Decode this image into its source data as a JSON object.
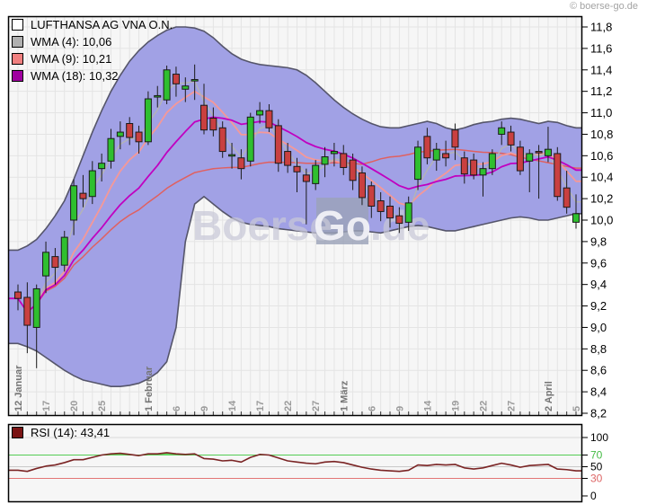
{
  "header": {
    "copyright": "© boerse-go.de"
  },
  "main_legend": {
    "title": "LUFTHANSA AG VNA O.N.",
    "title_swatch_color": "#ffffff",
    "items": [
      {
        "label": "WMA (4): 10,06",
        "color": "#b0b0b0"
      },
      {
        "label": "WMA (9): 10,21",
        "color": "#f08080"
      },
      {
        "label": "WMA (18): 10,32",
        "color": "#a000a0"
      }
    ]
  },
  "rsi_legend": {
    "label": "RSI (14): 43,41",
    "color": "#7a1414"
  },
  "watermark": {
    "pre": "Boerse",
    "boxed": "Go",
    "post": ".de"
  },
  "chart_data": {
    "type": "candlestick",
    "title": "LUFTHANSA AG VNA O.N.",
    "ylim": [
      8.2,
      11.8
    ],
    "grid": true,
    "legend_position": "top-left",
    "yticks": [
      "11,8",
      "11,6",
      "11,4",
      "11,2",
      "11,0",
      "10,8",
      "10,6",
      "10,4",
      "10,2",
      "10,0",
      "9,8",
      "9,6",
      "9,4",
      "9,2",
      "9,0",
      "8,8",
      "8,6",
      "8,4",
      "8,2"
    ],
    "xticks": [
      {
        "i": 0,
        "label": "12 Januar",
        "bold": true
      },
      {
        "i": 3,
        "label": "17",
        "bold": false
      },
      {
        "i": 6,
        "label": "20",
        "bold": false
      },
      {
        "i": 9,
        "label": "25",
        "bold": false
      },
      {
        "i": 14,
        "label": "1 Februar",
        "bold": true
      },
      {
        "i": 17,
        "label": "6",
        "bold": false
      },
      {
        "i": 20,
        "label": "9",
        "bold": false
      },
      {
        "i": 23,
        "label": "14",
        "bold": false
      },
      {
        "i": 26,
        "label": "17",
        "bold": false
      },
      {
        "i": 29,
        "label": "22",
        "bold": false
      },
      {
        "i": 32,
        "label": "27",
        "bold": false
      },
      {
        "i": 35,
        "label": "1 März",
        "bold": true
      },
      {
        "i": 38,
        "label": "6",
        "bold": false
      },
      {
        "i": 41,
        "label": "9",
        "bold": false
      },
      {
        "i": 44,
        "label": "14",
        "bold": false
      },
      {
        "i": 47,
        "label": "19",
        "bold": false
      },
      {
        "i": 50,
        "label": "22",
        "bold": false
      },
      {
        "i": 53,
        "label": "27",
        "bold": false
      },
      {
        "i": 57,
        "label": "2 April",
        "bold": true
      },
      {
        "i": 60,
        "label": "5",
        "bold": false
      }
    ],
    "candles": [
      [
        "12.01",
        9.33,
        9.4,
        9.16,
        9.27
      ],
      [
        "13.01",
        9.28,
        9.42,
        8.76,
        9.02
      ],
      [
        "16.01",
        9.0,
        9.4,
        8.62,
        9.36
      ],
      [
        "17.01",
        9.48,
        9.8,
        9.32,
        9.7
      ],
      [
        "18.01",
        9.66,
        9.74,
        9.4,
        9.56
      ],
      [
        "19.01",
        9.58,
        9.9,
        9.52,
        9.84
      ],
      [
        "20.01",
        10.0,
        10.38,
        9.86,
        10.32
      ],
      [
        "23.01",
        10.25,
        10.42,
        10.12,
        10.2
      ],
      [
        "24.01",
        10.22,
        10.55,
        10.15,
        10.46
      ],
      [
        "25.01",
        10.48,
        10.62,
        10.36,
        10.53
      ],
      [
        "26.01",
        10.55,
        10.85,
        10.48,
        10.76
      ],
      [
        "27.01",
        10.78,
        10.92,
        10.66,
        10.82
      ],
      [
        "30.01",
        10.9,
        10.96,
        10.7,
        10.77
      ],
      [
        "31.01",
        10.82,
        10.88,
        10.62,
        10.73
      ],
      [
        "01.02",
        10.73,
        11.2,
        10.7,
        11.13
      ],
      [
        "02.02",
        11.15,
        11.25,
        11.05,
        11.16
      ],
      [
        "03.02",
        11.12,
        11.44,
        11.08,
        11.4
      ],
      [
        "06.02",
        11.36,
        11.43,
        11.15,
        11.27
      ],
      [
        "07.02",
        11.22,
        11.33,
        11.1,
        11.25
      ],
      [
        "08.02",
        11.3,
        11.45,
        11.12,
        11.31
      ],
      [
        "09.02",
        11.07,
        11.27,
        10.8,
        10.84
      ],
      [
        "10.02",
        10.95,
        11.05,
        10.78,
        10.84
      ],
      [
        "13.02",
        10.86,
        10.92,
        10.58,
        10.64
      ],
      [
        "14.02",
        10.6,
        10.72,
        10.48,
        10.61
      ],
      [
        "15.02",
        10.58,
        10.66,
        10.38,
        10.48
      ],
      [
        "16.02",
        10.55,
        11.0,
        10.5,
        10.96
      ],
      [
        "17.02",
        10.98,
        11.1,
        10.9,
        11.02
      ],
      [
        "20.02",
        11.02,
        11.08,
        10.82,
        10.86
      ],
      [
        "21.02",
        10.88,
        10.94,
        10.45,
        10.53
      ],
      [
        "22.02",
        10.64,
        10.72,
        10.44,
        10.51
      ],
      [
        "23.02",
        10.5,
        10.58,
        10.26,
        10.45
      ],
      [
        "24.02",
        10.42,
        10.48,
        9.96,
        10.36
      ],
      [
        "27.02",
        10.34,
        10.56,
        10.28,
        10.51
      ],
      [
        "28.02",
        10.52,
        10.68,
        10.4,
        10.59
      ],
      [
        "29.02",
        10.62,
        10.72,
        10.5,
        10.64
      ],
      [
        "01.03",
        10.62,
        10.7,
        10.42,
        10.49
      ],
      [
        "02.03",
        10.56,
        10.62,
        10.28,
        10.37
      ],
      [
        "05.03",
        10.44,
        10.5,
        10.14,
        10.21
      ],
      [
        "06.03",
        10.32,
        10.36,
        10.02,
        10.13
      ],
      [
        "07.03",
        10.18,
        10.26,
        9.99,
        10.08
      ],
      [
        "08.03",
        10.13,
        10.22,
        9.93,
        10.02
      ],
      [
        "09.03",
        10.04,
        10.12,
        9.88,
        9.97
      ],
      [
        "12.03",
        9.98,
        10.22,
        9.9,
        10.16
      ],
      [
        "13.03",
        10.38,
        10.74,
        10.28,
        10.68
      ],
      [
        "14.03",
        10.78,
        10.86,
        10.52,
        10.58
      ],
      [
        "15.03",
        10.56,
        10.72,
        10.46,
        10.66
      ],
      [
        "16.03",
        10.62,
        10.74,
        10.5,
        10.58
      ],
      [
        "19.03",
        10.84,
        10.9,
        10.56,
        10.68
      ],
      [
        "20.03",
        10.58,
        10.64,
        10.34,
        10.43
      ],
      [
        "21.03",
        10.56,
        10.62,
        10.38,
        10.42
      ],
      [
        "22.03",
        10.42,
        10.54,
        10.22,
        10.48
      ],
      [
        "23.03",
        10.48,
        10.66,
        10.42,
        10.62
      ],
      [
        "26.03",
        10.8,
        10.92,
        10.7,
        10.86
      ],
      [
        "27.03",
        10.82,
        10.88,
        10.64,
        10.7
      ],
      [
        "28.03",
        10.68,
        10.74,
        10.42,
        10.46
      ],
      [
        "29.03",
        10.55,
        10.66,
        10.26,
        10.62
      ],
      [
        "30.03",
        10.64,
        10.7,
        10.2,
        10.63
      ],
      [
        "02.04",
        10.6,
        10.87,
        10.54,
        10.66
      ],
      [
        "03.04",
        10.62,
        10.68,
        10.18,
        10.22
      ],
      [
        "04.04",
        10.3,
        10.46,
        10.06,
        10.12
      ],
      [
        "05.04",
        9.98,
        10.24,
        9.92,
        10.06
      ]
    ],
    "band_upper": [
      9.72,
      9.76,
      9.82,
      9.92,
      10.04,
      10.18,
      10.38,
      10.6,
      10.82,
      11.02,
      11.2,
      11.35,
      11.48,
      11.58,
      11.66,
      11.72,
      11.77,
      11.8,
      11.8,
      11.79,
      11.76,
      11.7,
      11.62,
      11.55,
      11.5,
      11.47,
      11.45,
      11.44,
      11.43,
      11.42,
      11.4,
      11.35,
      11.28,
      11.2,
      11.12,
      11.05,
      10.99,
      10.94,
      10.9,
      10.87,
      10.86,
      10.86,
      10.88,
      10.9,
      10.92,
      10.9,
      10.86,
      10.84,
      10.86,
      10.89,
      10.91,
      10.92,
      10.94,
      10.95,
      10.94,
      10.92,
      10.9,
      10.92,
      10.91,
      10.88,
      10.86
    ],
    "band_lower": [
      8.85,
      8.82,
      8.78,
      8.72,
      8.66,
      8.6,
      8.55,
      8.51,
      8.49,
      8.47,
      8.45,
      8.45,
      8.46,
      8.48,
      8.52,
      8.58,
      8.68,
      9.0,
      9.8,
      10.15,
      10.22,
      10.15,
      10.08,
      10.02,
      9.98,
      9.96,
      9.95,
      9.94,
      9.92,
      9.91,
      9.9,
      9.89,
      9.88,
      9.88,
      9.88,
      9.89,
      9.9,
      9.9,
      9.89,
      9.88,
      9.9,
      9.92,
      9.94,
      9.95,
      9.94,
      9.92,
      9.9,
      9.9,
      9.92,
      9.94,
      9.96,
      9.98,
      10.0,
      10.02,
      10.03,
      10.02,
      10.0,
      10.0,
      10.02,
      10.04,
      10.06
    ],
    "overlays": [
      {
        "name": "Band midline",
        "type": "sma",
        "period": 38,
        "color": "#e06060",
        "width": 1.5
      },
      {
        "name": "WMA (9)",
        "type": "wma",
        "period": 9,
        "color": "#f59898",
        "width": 1.8
      },
      {
        "name": "WMA (4)",
        "type": "wma",
        "period": 4,
        "color": "#b4b4b4",
        "width": 1.4
      },
      {
        "name": "WMA (18)",
        "type": "wma",
        "period": 18,
        "color": "#c000c0",
        "width": 1.8
      }
    ],
    "indicator": {
      "name": "RSI (14)",
      "last": "43,41",
      "ylim": [
        0,
        100
      ],
      "line_color": "#7a2424",
      "fill_above_70_color": "#66dd66",
      "levels": [
        {
          "v": 100,
          "label": "100",
          "line": true,
          "line_color": "#d9d9d9",
          "label_color": "#000000"
        },
        {
          "v": 70,
          "label": "70",
          "line": true,
          "line_color": "#55cc55",
          "label_color": "#44bb44"
        },
        {
          "v": 50,
          "label": "50",
          "line": true,
          "line_color": "#c9c9c9",
          "label_color": "#000000"
        },
        {
          "v": 30,
          "label": "30",
          "line": true,
          "line_color": "#e37575",
          "label_color": "#dd6666"
        },
        {
          "v": 0,
          "label": "0",
          "line": false,
          "line_color": "#d9d9d9",
          "label_color": "#000000"
        }
      ],
      "values": [
        44,
        42,
        47,
        51,
        53,
        57,
        62,
        62,
        66,
        70,
        72,
        73,
        71,
        69,
        72,
        72,
        74,
        72,
        71,
        72,
        64,
        63,
        60,
        61,
        58,
        66,
        71,
        70,
        65,
        60,
        58,
        56,
        55,
        58,
        59,
        57,
        53,
        49,
        46,
        44,
        43,
        42,
        44,
        53,
        52,
        54,
        53,
        54,
        48,
        46,
        48,
        52,
        56,
        53,
        49,
        52,
        53,
        54,
        46,
        45,
        43
      ],
      "last_value": 43.41
    },
    "colors": {
      "up": "#2fbf2f",
      "down": "#c94040",
      "candle_outline": "#1a1a1a",
      "band_fill": "#a1a1e5",
      "band_border": "#55556a",
      "background": "#f6f6f6",
      "grid": "#e4e4e4",
      "frame": "#000000",
      "xlabel_day": "#9a9a9a",
      "xlabel_month": "#757575"
    }
  }
}
